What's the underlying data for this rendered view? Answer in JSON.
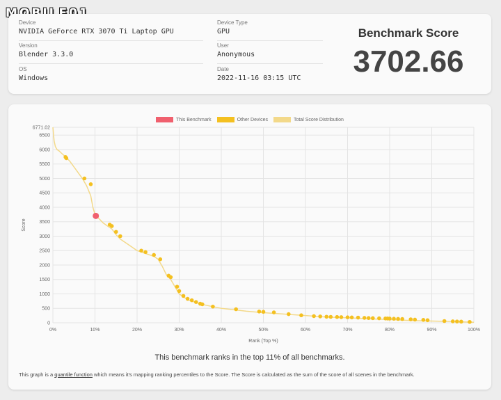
{
  "logo": {
    "text": "MOBILE01"
  },
  "info": {
    "device_label": "Device",
    "device_value": "NVIDIA GeForce RTX 3070 Ti Laptop GPU",
    "device_type_label": "Device Type",
    "device_type_value": "GPU",
    "version_label": "Version",
    "version_value": "Blender 3.3.0",
    "user_label": "User",
    "user_value": "Anonymous",
    "os_label": "OS",
    "os_value": "Windows",
    "date_label": "Date",
    "date_value": "2022-11-16 03:15 UTC"
  },
  "score": {
    "title": "Benchmark Score",
    "value": "3702.66"
  },
  "legend": {
    "this_benchmark": "This Benchmark",
    "other_devices": "Other Devices",
    "total_distribution": "Total Score Distribution"
  },
  "summary": "This benchmark ranks in the top 11% of all benchmarks.",
  "footnote": {
    "before": "This graph is a ",
    "link": "quantile function",
    "after": " which means it's mapping ranking percentiles to the Score. The Score is calculated as the sum of the score of all scenes in the benchmark."
  },
  "colors": {
    "this_benchmark": "#f0606e",
    "other_devices": "#f4c020",
    "distribution": "#f3d98a"
  },
  "chart_data": {
    "type": "line",
    "xlabel": "Rank (Top %)",
    "ylabel": "Score",
    "x_ticks": [
      "0%",
      "10%",
      "20%",
      "30%",
      "40%",
      "50%",
      "60%",
      "70%",
      "80%",
      "90%",
      "100%"
    ],
    "y_ticks": [
      "0",
      "500",
      "1000",
      "1500",
      "2000",
      "2500",
      "3000",
      "3500",
      "4000",
      "4500",
      "5000",
      "5500",
      "6000",
      "6500",
      "6771.02"
    ],
    "xlim": [
      0,
      100
    ],
    "ylim": [
      0,
      6771.02
    ],
    "grid": true,
    "legend_position": "top",
    "distribution": {
      "name": "Total Score Distribution",
      "x": [
        0,
        0.3,
        0.6,
        1,
        1.5,
        2,
        3,
        4,
        5,
        6,
        7,
        8,
        9,
        9.5,
        10,
        11,
        12,
        13,
        14,
        15,
        16,
        18,
        20,
        22,
        24,
        25,
        26,
        27,
        28,
        29,
        30,
        32,
        34,
        36,
        38,
        40,
        43,
        46,
        50,
        55,
        60,
        65,
        70,
        75,
        80,
        85,
        90,
        95,
        100
      ],
      "y": [
        6771,
        6300,
        6100,
        6000,
        5950,
        5880,
        5750,
        5600,
        5400,
        5200,
        5000,
        4750,
        4400,
        4000,
        3750,
        3600,
        3450,
        3350,
        3250,
        3050,
        2900,
        2700,
        2500,
        2400,
        2300,
        2200,
        1950,
        1650,
        1500,
        1250,
        1000,
        800,
        700,
        620,
        560,
        500,
        450,
        400,
        350,
        300,
        250,
        200,
        170,
        140,
        110,
        80,
        60,
        40,
        20
      ]
    },
    "this_benchmark": {
      "x": 10.2,
      "y": 3702.66
    },
    "other_devices": {
      "x": [
        3,
        3.2,
        7.5,
        9,
        13.5,
        14,
        15,
        16,
        21,
        22,
        24,
        25.5,
        27.5,
        28,
        29.5,
        30,
        31,
        32,
        33,
        34,
        35,
        35.5,
        38,
        43.5,
        49,
        50,
        52.5,
        56,
        59,
        62,
        63.5,
        65,
        66,
        67.5,
        68.5,
        70,
        71,
        72.5,
        74,
        75,
        76,
        77.5,
        79,
        79.5,
        80,
        81,
        82,
        83,
        85,
        86,
        88,
        89,
        93,
        95,
        96,
        97,
        99
      ],
      "y": [
        5740,
        5700,
        5000,
        4800,
        3400,
        3350,
        3150,
        3000,
        2500,
        2450,
        2350,
        2200,
        1630,
        1580,
        1250,
        1100,
        930,
        830,
        780,
        720,
        660,
        640,
        560,
        470,
        390,
        380,
        360,
        300,
        260,
        230,
        220,
        210,
        205,
        200,
        195,
        190,
        185,
        180,
        170,
        165,
        160,
        155,
        150,
        148,
        145,
        140,
        135,
        130,
        120,
        110,
        100,
        90,
        60,
        50,
        45,
        40,
        30
      ]
    }
  }
}
